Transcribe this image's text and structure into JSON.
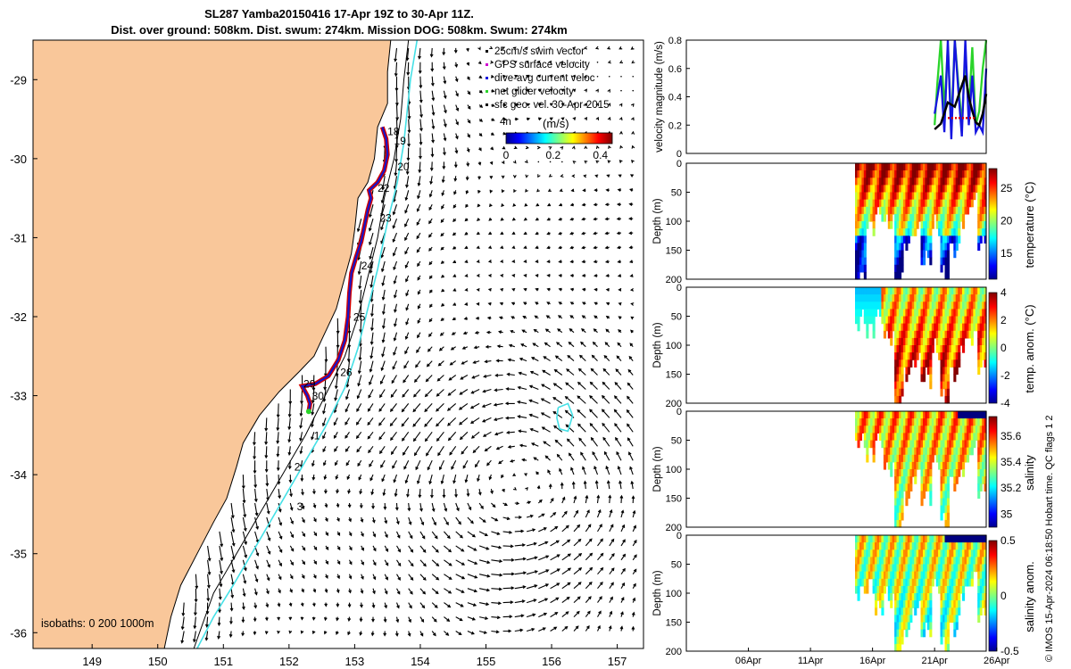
{
  "title": {
    "line1": "SL287 Yamba20150416 17-Apr 19Z to 30-Apr 11Z.",
    "line2": "Dist. over ground: 508km. Dist. swum: 274km. Mission DOG: 508km. Swum: 274km"
  },
  "credit": "© IMOS 15-Apr-2024 06:18:50 Hobart time. QC flags 1  2",
  "colors": {
    "land": "#f9c79a",
    "isobath_cyan": "#44e0e6",
    "track_red": "#d40000",
    "track_blue": "#1515c8"
  },
  "chart_data": [
    {
      "type": "map",
      "xlim": [
        148.1,
        157.4
      ],
      "ylim": [
        -36.2,
        -28.5
      ],
      "x_ticks": [
        149,
        150,
        151,
        152,
        153,
        154,
        155,
        156,
        157
      ],
      "y_ticks": [
        -29,
        -30,
        -31,
        -32,
        -33,
        -34,
        -35,
        -36
      ],
      "legend": {
        "position": "top-right",
        "entries": [
          "25cm/s swim vector",
          "GPS surface velocity",
          "dive-avg current veloc",
          "net glider velocity",
          "sfc geo. vel. 30-Apr-2015"
        ]
      },
      "colorbar": {
        "label": "(m/s)",
        "ticks": [
          "0",
          "0.2",
          "0.4"
        ],
        "range": [
          0,
          0.45
        ]
      },
      "extra_label": "4n",
      "isobath_text": "isobaths: 0   200  1000m",
      "coastline": [
        [
          153.55,
          -28.5
        ],
        [
          153.5,
          -28.9
        ],
        [
          153.5,
          -29.3
        ],
        [
          153.35,
          -29.6
        ],
        [
          153.3,
          -30.0
        ],
        [
          153.2,
          -30.3
        ],
        [
          153.05,
          -30.5
        ],
        [
          153.0,
          -30.9
        ],
        [
          152.95,
          -31.2
        ],
        [
          152.85,
          -31.5
        ],
        [
          152.72,
          -31.9
        ],
        [
          152.55,
          -32.2
        ],
        [
          152.38,
          -32.5
        ],
        [
          152.15,
          -32.7
        ],
        [
          151.85,
          -32.95
        ],
        [
          151.55,
          -33.25
        ],
        [
          151.3,
          -33.6
        ],
        [
          151.2,
          -33.9
        ],
        [
          151.05,
          -34.3
        ],
        [
          150.85,
          -34.6
        ],
        [
          150.6,
          -35.0
        ],
        [
          150.35,
          -35.4
        ],
        [
          150.2,
          -35.8
        ],
        [
          150.1,
          -36.2
        ]
      ],
      "isobath_200m": [
        [
          153.82,
          -28.5
        ],
        [
          153.75,
          -29.0
        ],
        [
          153.7,
          -29.5
        ],
        [
          153.6,
          -30.0
        ],
        [
          153.45,
          -30.5
        ],
        [
          153.35,
          -31.0
        ],
        [
          153.2,
          -31.5
        ],
        [
          153.05,
          -32.0
        ],
        [
          152.85,
          -32.5
        ],
        [
          152.55,
          -33.0
        ],
        [
          152.25,
          -33.5
        ],
        [
          151.9,
          -34.0
        ],
        [
          151.55,
          -34.5
        ],
        [
          151.2,
          -35.0
        ],
        [
          150.85,
          -35.5
        ],
        [
          150.55,
          -36.2
        ]
      ],
      "isobath_1000m": [
        [
          153.95,
          -28.5
        ],
        [
          153.85,
          -29.0
        ],
        [
          153.75,
          -29.8
        ],
        [
          153.65,
          -30.3
        ],
        [
          153.5,
          -30.8
        ],
        [
          153.35,
          -31.4
        ],
        [
          153.2,
          -31.9
        ],
        [
          153.05,
          -32.4
        ],
        [
          152.85,
          -32.9
        ],
        [
          152.55,
          -33.4
        ],
        [
          152.2,
          -33.9
        ],
        [
          151.85,
          -34.4
        ],
        [
          151.5,
          -34.9
        ],
        [
          151.15,
          -35.4
        ],
        [
          150.85,
          -35.8
        ],
        [
          150.6,
          -36.2
        ]
      ],
      "eddy_contour": [
        [
          156.1,
          -33.15
        ],
        [
          156.25,
          -33.1
        ],
        [
          156.32,
          -33.25
        ],
        [
          156.25,
          -33.45
        ],
        [
          156.12,
          -33.42
        ],
        [
          156.08,
          -33.28
        ],
        [
          156.1,
          -33.15
        ]
      ],
      "track": [
        [
          153.42,
          -29.6
        ],
        [
          153.48,
          -29.75
        ],
        [
          153.5,
          -29.95
        ],
        [
          153.45,
          -30.15
        ],
        [
          153.35,
          -30.3
        ],
        [
          153.22,
          -30.4
        ],
        [
          153.25,
          -30.5
        ],
        [
          153.2,
          -30.65
        ],
        [
          153.15,
          -30.85
        ],
        [
          153.1,
          -31.05
        ],
        [
          153.02,
          -31.25
        ],
        [
          152.95,
          -31.45
        ],
        [
          152.92,
          -31.7
        ],
        [
          152.9,
          -32.0
        ],
        [
          152.85,
          -32.3
        ],
        [
          152.75,
          -32.55
        ],
        [
          152.6,
          -32.75
        ],
        [
          152.4,
          -32.85
        ],
        [
          152.2,
          -32.88
        ],
        [
          152.28,
          -33.0
        ],
        [
          152.32,
          -33.1
        ],
        [
          152.3,
          -33.2
        ]
      ],
      "day_labels": [
        {
          "text": "18",
          "lon": 153.5,
          "lat": -29.7
        },
        {
          "text": "19",
          "lon": 153.6,
          "lat": -29.82
        },
        {
          "text": "20",
          "lon": 153.65,
          "lat": -30.15
        },
        {
          "text": "22",
          "lon": 153.35,
          "lat": -30.42
        },
        {
          "text": "23",
          "lon": 153.38,
          "lat": -30.8
        },
        {
          "text": "24",
          "lon": 153.1,
          "lat": -31.4
        },
        {
          "text": "25",
          "lon": 152.98,
          "lat": -32.05
        },
        {
          "text": "26",
          "lon": 152.78,
          "lat": -32.75
        },
        {
          "text": "29",
          "lon": 152.22,
          "lat": -32.9
        },
        {
          "text": "30",
          "lon": 152.35,
          "lat": -33.05
        },
        {
          "text": "1",
          "lon": 152.38,
          "lat": -33.55
        },
        {
          "text": "2",
          "lon": 152.08,
          "lat": -33.95
        },
        {
          "text": "3",
          "lon": 152.12,
          "lat": -34.45
        }
      ]
    },
    {
      "type": "line",
      "ylabel": "velocity magnitude (m/s)",
      "ylim": [
        0,
        0.8
      ],
      "y_ticks": [
        "0",
        "0.2",
        "0.4",
        "0.6",
        "0.8"
      ],
      "xlim": [
        1.0,
        44.0
      ],
      "series": [
        {
          "name": "net glider velocity",
          "color": "#2ad42a",
          "x": [
            36.6,
            37.0,
            37.5,
            38.0,
            38.5,
            39.0,
            39.5,
            40.0,
            40.5,
            41.0,
            41.5,
            42.0,
            42.5,
            43.0,
            43.5,
            44.0
          ],
          "values": [
            0.2,
            0.5,
            0.8,
            0.3,
            0.75,
            0.2,
            0.8,
            0.5,
            0.2,
            0.7,
            0.3,
            0.75,
            0.2,
            0.3,
            0.6,
            0.8
          ]
        },
        {
          "name": "dive-avg current veloc",
          "color": "#1515e0",
          "x": [
            36.6,
            37.0,
            37.5,
            38.0,
            38.5,
            39.0,
            39.5,
            40.0,
            40.5,
            41.0,
            41.5,
            42.0,
            42.5,
            43.0,
            43.5,
            44.0
          ],
          "values": [
            0.28,
            0.4,
            0.55,
            0.15,
            0.8,
            0.1,
            0.8,
            0.45,
            0.12,
            0.8,
            0.2,
            0.55,
            0.15,
            0.2,
            0.15,
            0.6
          ]
        },
        {
          "name": "smoothed",
          "color": "#000000",
          "x": [
            36.6,
            37.5,
            38.5,
            39.5,
            40.5,
            41.0,
            41.5,
            42.0,
            42.5,
            43.0,
            43.5,
            44.0
          ],
          "values": [
            0.17,
            0.21,
            0.36,
            0.33,
            0.48,
            0.55,
            0.4,
            0.3,
            0.22,
            0.2,
            0.28,
            0.42
          ]
        },
        {
          "name": "GPS surface velocity",
          "color": "#e00000",
          "x": [
            38.5,
            39.5,
            40.5,
            41.5,
            42.5
          ],
          "values": [
            0.25,
            0.25,
            0.25,
            0.25,
            0.25
          ]
        }
      ]
    },
    {
      "type": "heatmap",
      "ylabel": "Depth (m)",
      "colorbar_label": "temperature (°C)",
      "colorbar_ticks": [
        "15",
        "20",
        "25"
      ],
      "range": [
        11,
        28
      ],
      "ylim": [
        200,
        0
      ],
      "y_ticks": [
        "0",
        "50",
        "100",
        "150",
        "200"
      ],
      "bottom_depth": [
        190,
        100,
        80,
        95,
        200,
        130,
        110,
        160,
        100,
        180,
        140,
        90,
        60,
        130
      ],
      "surface_value": 27,
      "deep_value": 14
    },
    {
      "type": "heatmap",
      "ylabel": "Depth (m)",
      "colorbar_label": "temp. anom. (°C)",
      "colorbar_ticks": [
        "-4",
        "-2",
        "0",
        "2",
        "4"
      ],
      "range": [
        -4,
        4
      ],
      "ylim": [
        200,
        0
      ],
      "y_ticks": [
        "0",
        "50",
        "100",
        "150",
        "200"
      ],
      "bottom_depth": [
        50,
        70,
        40,
        80,
        200,
        140,
        120,
        150,
        100,
        180,
        140,
        90,
        80,
        130
      ],
      "surface_value": 1,
      "deep_value": 3.5
    },
    {
      "type": "heatmap",
      "ylabel": "Depth (m)",
      "colorbar_label": "salinity",
      "colorbar_ticks": [
        "35",
        "35.2",
        "35.4",
        "35.6"
      ],
      "range": [
        34.9,
        35.75
      ],
      "ylim": [
        200,
        0
      ],
      "y_ticks": [
        "0",
        "50",
        "100",
        "150",
        "200"
      ],
      "bottom_depth": [
        45,
        70,
        40,
        90,
        200,
        140,
        100,
        140,
        80,
        180,
        120,
        90,
        60,
        130
      ],
      "surface_value": 35.5,
      "deep_value": 35.35
    },
    {
      "type": "heatmap",
      "ylabel": "Depth (m)",
      "colorbar_label": "salinity anom.",
      "colorbar_ticks": [
        "-0.5",
        "0",
        "0.5"
      ],
      "range": [
        -0.5,
        0.5
      ],
      "ylim": [
        200,
        0
      ],
      "y_ticks": [
        "0",
        "50",
        "100",
        "150",
        "200"
      ],
      "x_ticks": [
        "06Apr",
        "11Apr",
        "16Apr",
        "21Apr",
        "26Apr"
      ],
      "x_tick_days": [
        6,
        11,
        16,
        21,
        26
      ],
      "bottom_depth": [
        90,
        80,
        120,
        100,
        200,
        160,
        120,
        160,
        80,
        180,
        150,
        90,
        70,
        130
      ],
      "surface_value": 0.1,
      "deep_value": -0.05
    }
  ]
}
